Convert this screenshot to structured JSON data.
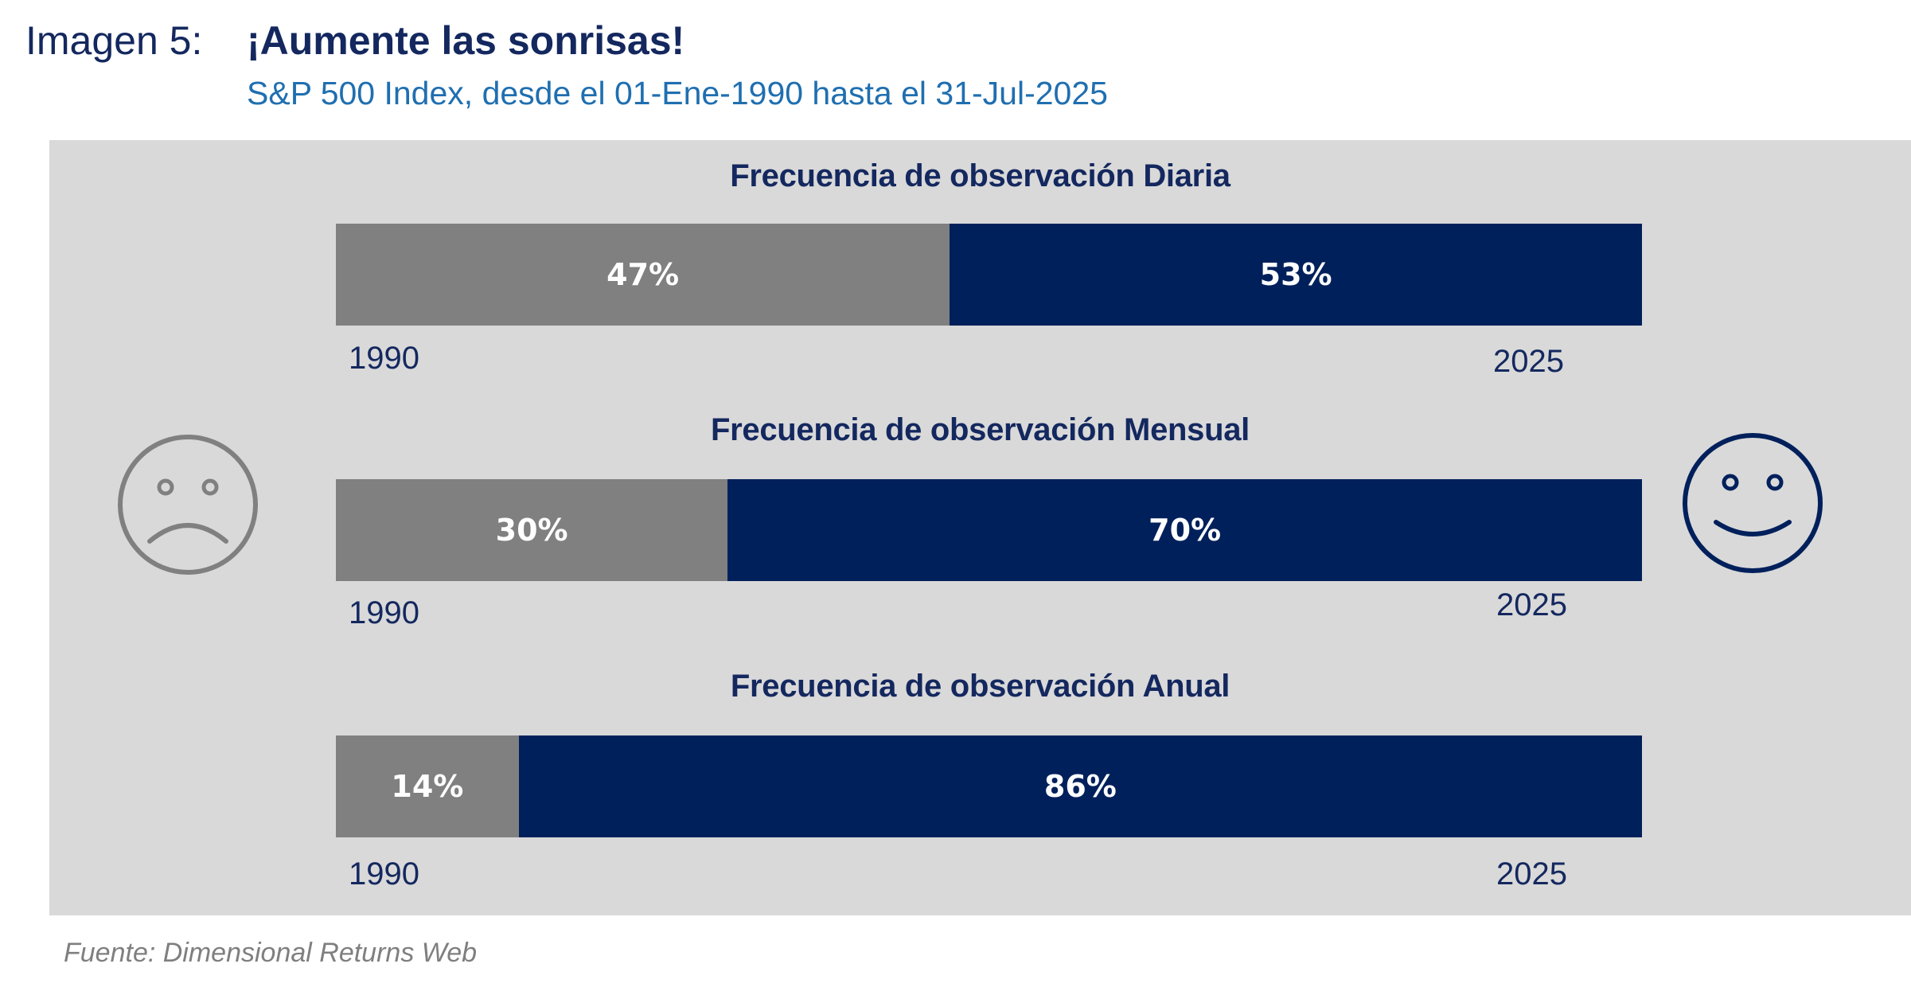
{
  "header": {
    "label": "Imagen 5:",
    "title": "¡Aumente las sonrisas!",
    "subtitle": "S&P 500 Index, desde el 01-Ene-1990 hasta el 31-Jul-2025"
  },
  "colors": {
    "negative": "#808080",
    "positive": "#00205b",
    "panel_background": "#d9d9d9",
    "title_color": "#14285f"
  },
  "icons": {
    "left": "sad-face-icon",
    "right": "happy-face-icon"
  },
  "source": "Fuente: Dimensional Returns Web",
  "chart_data": [
    {
      "type": "bar",
      "orientation": "horizontal-stacked-100",
      "title": "Frecuencia de observación Diaria",
      "categories": [
        "Diaria"
      ],
      "series": [
        {
          "values": [
            47
          ],
          "label": "47%",
          "color": "#808080"
        },
        {
          "values": [
            53
          ],
          "label": "53%",
          "color": "#00205b"
        }
      ],
      "start_label": "1990",
      "end_label": "2025"
    },
    {
      "type": "bar",
      "orientation": "horizontal-stacked-100",
      "title": "Frecuencia de observación Mensual",
      "categories": [
        "Mensual"
      ],
      "series": [
        {
          "values": [
            30
          ],
          "label": "30%",
          "color": "#808080"
        },
        {
          "values": [
            70
          ],
          "label": "70%",
          "color": "#00205b"
        }
      ],
      "start_label": "1990",
      "end_label": "2025"
    },
    {
      "type": "bar",
      "orientation": "horizontal-stacked-100",
      "title": "Frecuencia de observación Anual",
      "categories": [
        "Anual"
      ],
      "series": [
        {
          "values": [
            14
          ],
          "label": "14%",
          "color": "#808080"
        },
        {
          "values": [
            86
          ],
          "label": "86%",
          "color": "#00205b"
        }
      ],
      "start_label": "1990",
      "end_label": "2025"
    }
  ]
}
